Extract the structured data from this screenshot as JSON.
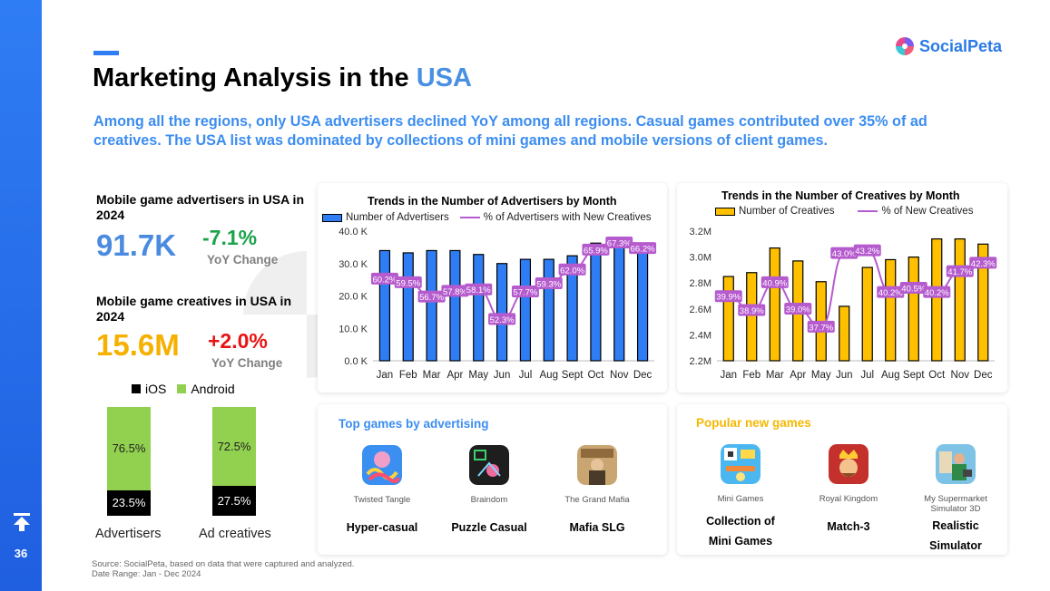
{
  "page": {
    "number": "36"
  },
  "title": {
    "main": "Marketing Analysis in the ",
    "accent": "USA"
  },
  "logo": {
    "text": "SocialPeta"
  },
  "subtitle": "Among all the regions, only USA advertisers declined YoY among all regions. Casual games contributed over 35% of ad creatives. The USA list was dominated by collections of mini games and mobile versions of client games.",
  "kpis": {
    "advertisers": {
      "label": "Mobile game advertisers in USA in 2024",
      "value": "91.7K",
      "change": "-7.1%",
      "change_label": "YoY Change"
    },
    "creatives": {
      "label": "Mobile game creatives in USA in 2024",
      "value": "15.6M",
      "change": "+2.0%",
      "change_label": "YoY Change"
    }
  },
  "platform_split": {
    "legend": {
      "ios": "iOS",
      "android": "Android"
    },
    "colors": {
      "ios": "#000000",
      "android": "#92d050"
    },
    "bars": [
      {
        "label": "Advertisers",
        "android": "76.5%",
        "ios": "23.5%"
      },
      {
        "label": "Ad creatives",
        "android": "72.5%",
        "ios": "27.5%"
      }
    ]
  },
  "chart_data": [
    {
      "type": "bar",
      "title": "Trends in the Number of Advertisers by Month",
      "categories": [
        "Jan",
        "Feb",
        "Mar",
        "Apr",
        "May",
        "Jun",
        "Jul",
        "Aug",
        "Sept",
        "Oct",
        "Nov",
        "Dec"
      ],
      "series": [
        {
          "name": "Number of Advertisers",
          "kind": "bar",
          "color": "#2f7df4",
          "values": [
            34000,
            33300,
            34000,
            34000,
            32800,
            30000,
            31300,
            31300,
            32400,
            36300,
            35600,
            36200
          ]
        },
        {
          "name": "% of Advertisers with New Creatives",
          "kind": "line",
          "color": "#b55bce",
          "values": [
            60.2,
            59.5,
            56.7,
            57.8,
            58.1,
            52.3,
            57.7,
            59.3,
            62.0,
            65.9,
            67.3,
            66.2
          ],
          "labels": [
            "60.2%",
            "59.5%",
            "56.7%",
            "57.8%",
            "58.1%",
            "52.3%",
            "57.7%",
            "59.3%",
            "62.0%",
            "65.9%",
            "67.3%",
            "66.2%"
          ]
        }
      ],
      "yticks": [
        "0.0 K",
        "10.0 K",
        "20.0 K",
        "30.0 K",
        "40.0 K"
      ],
      "ylim": [
        0,
        40000
      ],
      "grid": false,
      "legend": "top"
    },
    {
      "type": "bar",
      "title": "Trends in the Number of Creatives by Month",
      "categories": [
        "Jan",
        "Feb",
        "Mar",
        "Apr",
        "May",
        "Jun",
        "Jul",
        "Aug",
        "Sept",
        "Oct",
        "Nov",
        "Dec"
      ],
      "series": [
        {
          "name": "Number of Creatives",
          "kind": "bar",
          "color": "#ffc000",
          "values": [
            2850000,
            2880000,
            3070000,
            2970000,
            2810000,
            2620000,
            2920000,
            2980000,
            3000000,
            3140000,
            3140000,
            3100000
          ]
        },
        {
          "name": "% of New Creatives",
          "kind": "line",
          "color": "#b55bce",
          "values": [
            39.9,
            38.9,
            40.9,
            39.0,
            37.7,
            43.0,
            43.2,
            40.2,
            40.5,
            40.2,
            41.7,
            42.3
          ],
          "labels": [
            "39.9%",
            "38.9%",
            "40.9%",
            "39.0%",
            "37.7%",
            "43.0%",
            "43.2%",
            "40.2%",
            "40.5%",
            "40.2%",
            "41.7%",
            "42.3%"
          ]
        }
      ],
      "yticks": [
        "2.2M",
        "2.4M",
        "2.6M",
        "2.8M",
        "3.0M",
        "3.2M"
      ],
      "ylim": [
        2200000,
        3200000
      ],
      "grid": false,
      "legend": "top"
    }
  ],
  "top_games": {
    "title": "Top games by advertising",
    "title_color": "#3c8df0",
    "games": [
      {
        "name": "Twisted Tangle",
        "genre": "Hyper-casual",
        "icon": "twisted-tangle-icon"
      },
      {
        "name": "Braindom",
        "genre": "Puzzle Casual",
        "icon": "braindom-icon"
      },
      {
        "name": "The Grand Mafia",
        "genre": "Mafia SLG",
        "icon": "grand-mafia-icon"
      }
    ]
  },
  "new_games": {
    "title": "Popular new games",
    "title_color": "#f5b800",
    "games": [
      {
        "name": "Mini Games",
        "genre_line1": "Collection of",
        "genre_line2": "Mini Games",
        "icon": "mini-games-icon"
      },
      {
        "name": "Royal Kingdom",
        "genre_line1": "Match-3",
        "genre_line2": "",
        "icon": "royal-kingdom-icon"
      },
      {
        "name_line1": "My Supermarket",
        "name_line2": "Simulator 3D",
        "genre_line1": "Realistic",
        "genre_line2": "Simulator",
        "icon": "supermarket-simulator-icon"
      }
    ]
  },
  "source": {
    "line1": "Source: SocialPeta, based on data that were captured and analyzed.",
    "line2": "Date Range: Jan - Dec 2024"
  }
}
